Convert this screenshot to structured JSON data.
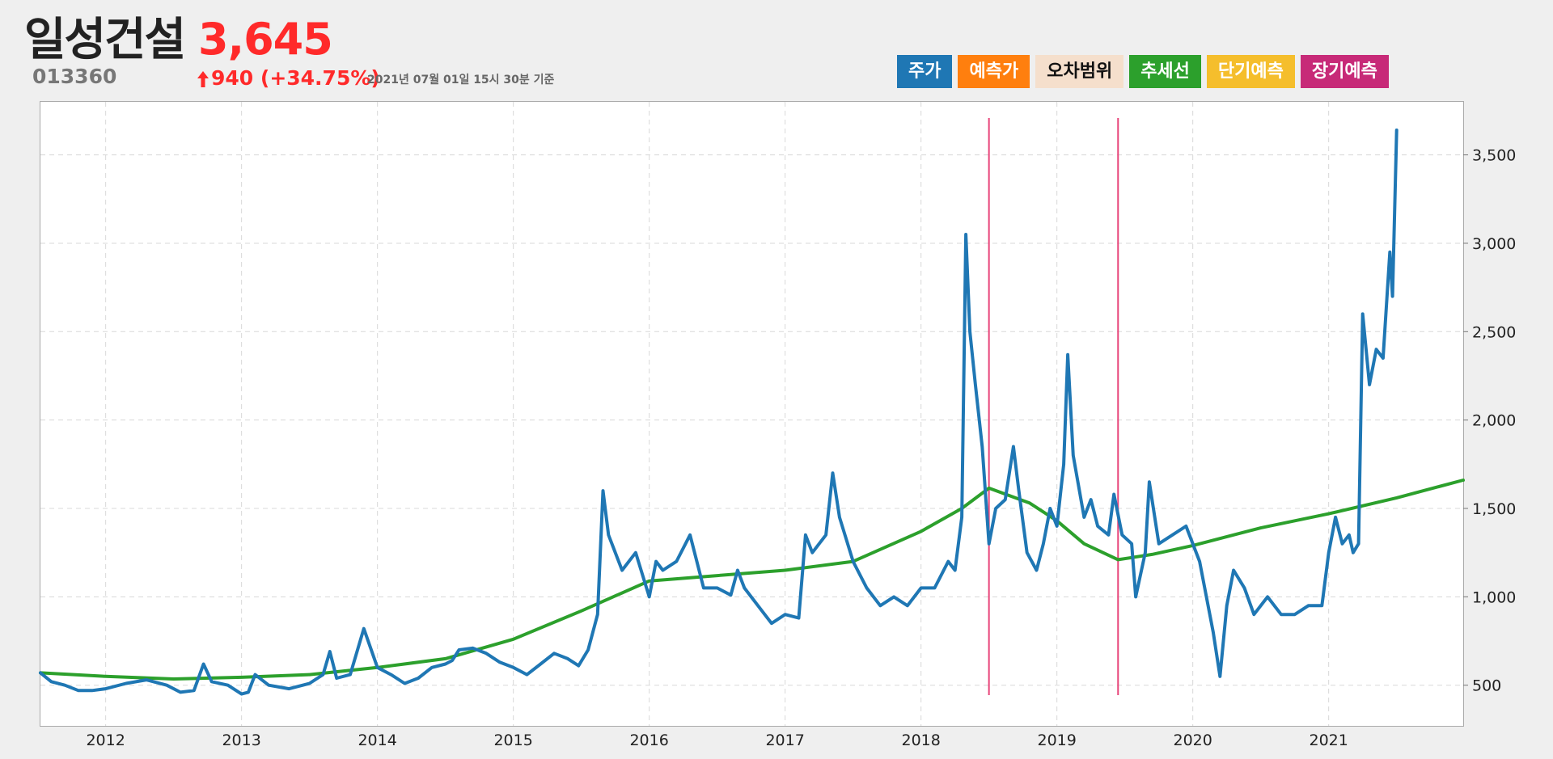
{
  "header": {
    "name": "일성건설",
    "price": "3,645",
    "code": "013360",
    "change": "940 (+34.75%)",
    "timestamp": "2021년 07월 01일 15시 30분 기준"
  },
  "legend": [
    {
      "label": "주가",
      "bg": "#1f77b4",
      "fg": "#ffffff"
    },
    {
      "label": "예측가",
      "bg": "#ff7f0e",
      "fg": "#ffffff"
    },
    {
      "label": "오차범위",
      "bg": "#f5dfcc",
      "fg": "#111111"
    },
    {
      "label": "추세선",
      "bg": "#2ca02c",
      "fg": "#ffffff"
    },
    {
      "label": "단기예측",
      "bg": "#f5be2c",
      "fg": "#ffffff"
    },
    {
      "label": "장기예측",
      "bg": "#c72a78",
      "fg": "#ffffff"
    }
  ],
  "colors": {
    "price_line": "#1f77b4",
    "trend_line": "#2ca02c",
    "vline": "#e8457a",
    "up": "#ff2a2a"
  },
  "chart_data": {
    "type": "line",
    "x_range": [
      2011.52,
      2021.99
    ],
    "ylim": [
      270,
      3800
    ],
    "x_ticks": [
      2012,
      2013,
      2014,
      2015,
      2016,
      2017,
      2018,
      2019,
      2020,
      2021
    ],
    "y_ticks": [
      500,
      1000,
      1500,
      2000,
      2500,
      3000,
      3500
    ],
    "y_tick_labels": [
      "500",
      "1,000",
      "1,500",
      "2,000",
      "2,500",
      "3,000",
      "3,500"
    ],
    "grid": true,
    "vertical_markers": [
      2018.5,
      2019.45
    ],
    "series": [
      {
        "key": "price",
        "x": [
          2011.52,
          2011.6,
          2011.7,
          2011.8,
          2011.9,
          2012.0,
          2012.15,
          2012.3,
          2012.45,
          2012.55,
          2012.65,
          2012.72,
          2012.78,
          2012.9,
          2013.0,
          2013.05,
          2013.1,
          2013.2,
          2013.35,
          2013.5,
          2013.6,
          2013.65,
          2013.7,
          2013.8,
          2013.9,
          2014.0,
          2014.1,
          2014.2,
          2014.3,
          2014.4,
          2014.5,
          2014.55,
          2014.6,
          2014.7,
          2014.8,
          2014.9,
          2015.0,
          2015.1,
          2015.2,
          2015.3,
          2015.4,
          2015.48,
          2015.55,
          2015.62,
          2015.66,
          2015.7,
          2015.8,
          2015.9,
          2016.0,
          2016.05,
          2016.1,
          2016.2,
          2016.3,
          2016.4,
          2016.5,
          2016.6,
          2016.65,
          2016.7,
          2016.8,
          2016.9,
          2017.0,
          2017.1,
          2017.15,
          2017.2,
          2017.3,
          2017.35,
          2017.4,
          2017.5,
          2017.6,
          2017.7,
          2017.8,
          2017.9,
          2018.0,
          2018.1,
          2018.2,
          2018.25,
          2018.3,
          2018.33,
          2018.36,
          2018.4,
          2018.45,
          2018.5,
          2018.55,
          2018.62,
          2018.68,
          2018.72,
          2018.78,
          2018.85,
          2018.9,
          2018.95,
          2019.0,
          2019.05,
          2019.08,
          2019.12,
          2019.2,
          2019.25,
          2019.3,
          2019.38,
          2019.42,
          2019.48,
          2019.55,
          2019.58,
          2019.65,
          2019.68,
          2019.75,
          2019.85,
          2019.95,
          2020.05,
          2020.1,
          2020.15,
          2020.2,
          2020.25,
          2020.3,
          2020.38,
          2020.45,
          2020.55,
          2020.65,
          2020.75,
          2020.85,
          2020.95,
          2021.0,
          2021.05,
          2021.1,
          2021.15,
          2021.18,
          2021.22,
          2021.25,
          2021.3,
          2021.35,
          2021.4,
          2021.45,
          2021.47,
          2021.5
        ],
        "values": [
          570,
          520,
          500,
          470,
          470,
          480,
          510,
          530,
          500,
          460,
          470,
          620,
          520,
          500,
          450,
          460,
          560,
          500,
          480,
          510,
          560,
          690,
          540,
          560,
          820,
          600,
          560,
          510,
          540,
          600,
          620,
          640,
          700,
          710,
          680,
          630,
          600,
          560,
          620,
          680,
          650,
          610,
          700,
          900,
          1600,
          1350,
          1150,
          1250,
          1000,
          1200,
          1150,
          1200,
          1350,
          1050,
          1050,
          1010,
          1150,
          1050,
          950,
          850,
          900,
          880,
          1350,
          1250,
          1350,
          1700,
          1450,
          1200,
          1050,
          950,
          1000,
          950,
          1050,
          1050,
          1200,
          1150,
          1450,
          3050,
          2500,
          2200,
          1850,
          1300,
          1500,
          1550,
          1850,
          1600,
          1250,
          1150,
          1300,
          1500,
          1400,
          1750,
          2370,
          1800,
          1450,
          1550,
          1400,
          1350,
          1580,
          1350,
          1300,
          1000,
          1250,
          1650,
          1300,
          1350,
          1400,
          1200,
          1000,
          800,
          550,
          950,
          1150,
          1050,
          900,
          1000,
          900,
          900,
          950,
          950,
          1250,
          1450,
          1300,
          1350,
          1250,
          1300,
          2600,
          2200,
          2400,
          2350,
          2950,
          2700,
          3640
        ]
      },
      {
        "key": "trend",
        "x": [
          2011.52,
          2012.0,
          2012.5,
          2013.0,
          2013.5,
          2014.0,
          2014.5,
          2015.0,
          2015.5,
          2016.0,
          2016.5,
          2017.0,
          2017.5,
          2018.0,
          2018.3,
          2018.5,
          2018.8,
          2019.0,
          2019.2,
          2019.45,
          2019.7,
          2020.0,
          2020.5,
          2021.0,
          2021.5,
          2021.99
        ],
        "values": [
          570,
          550,
          535,
          545,
          560,
          600,
          650,
          760,
          920,
          1090,
          1120,
          1150,
          1200,
          1370,
          1500,
          1615,
          1530,
          1430,
          1300,
          1210,
          1240,
          1290,
          1390,
          1470,
          1560,
          1660
        ]
      }
    ]
  }
}
